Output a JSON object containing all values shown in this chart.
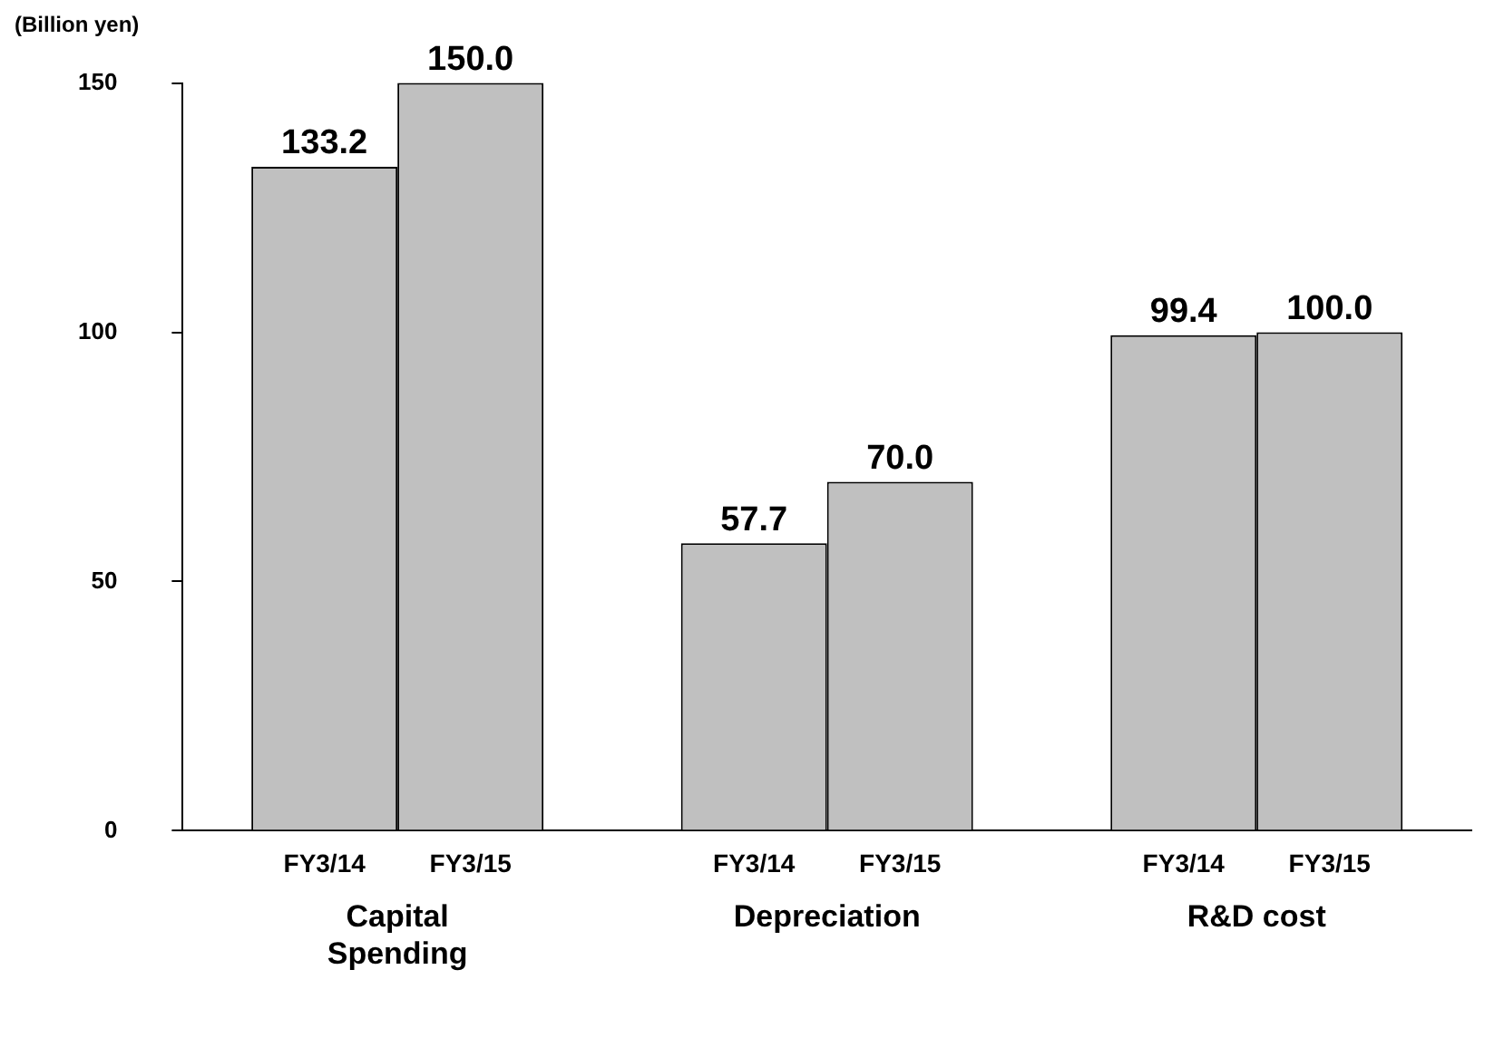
{
  "chart_data": {
    "type": "bar",
    "ylabel": "(Billion yen)",
    "categories": [
      "Capital Spending",
      "Depreciation",
      "R&D cost"
    ],
    "series": [
      {
        "name": "FY3/14",
        "color": "#c0c0c0",
        "values": [
          133.2,
          57.7,
          99.4
        ],
        "value_labels": [
          "133.2",
          "57.7",
          "99.4"
        ]
      },
      {
        "name": "FY3/15",
        "color": "#c0c0c0",
        "values": [
          150,
          70,
          100
        ],
        "value_labels": [
          "150.0",
          "70.0",
          "100.0"
        ]
      }
    ],
    "ylim": [
      0,
      150
    ],
    "yticks": [
      0,
      50,
      100,
      150
    ],
    "grid": false,
    "legend": false
  }
}
